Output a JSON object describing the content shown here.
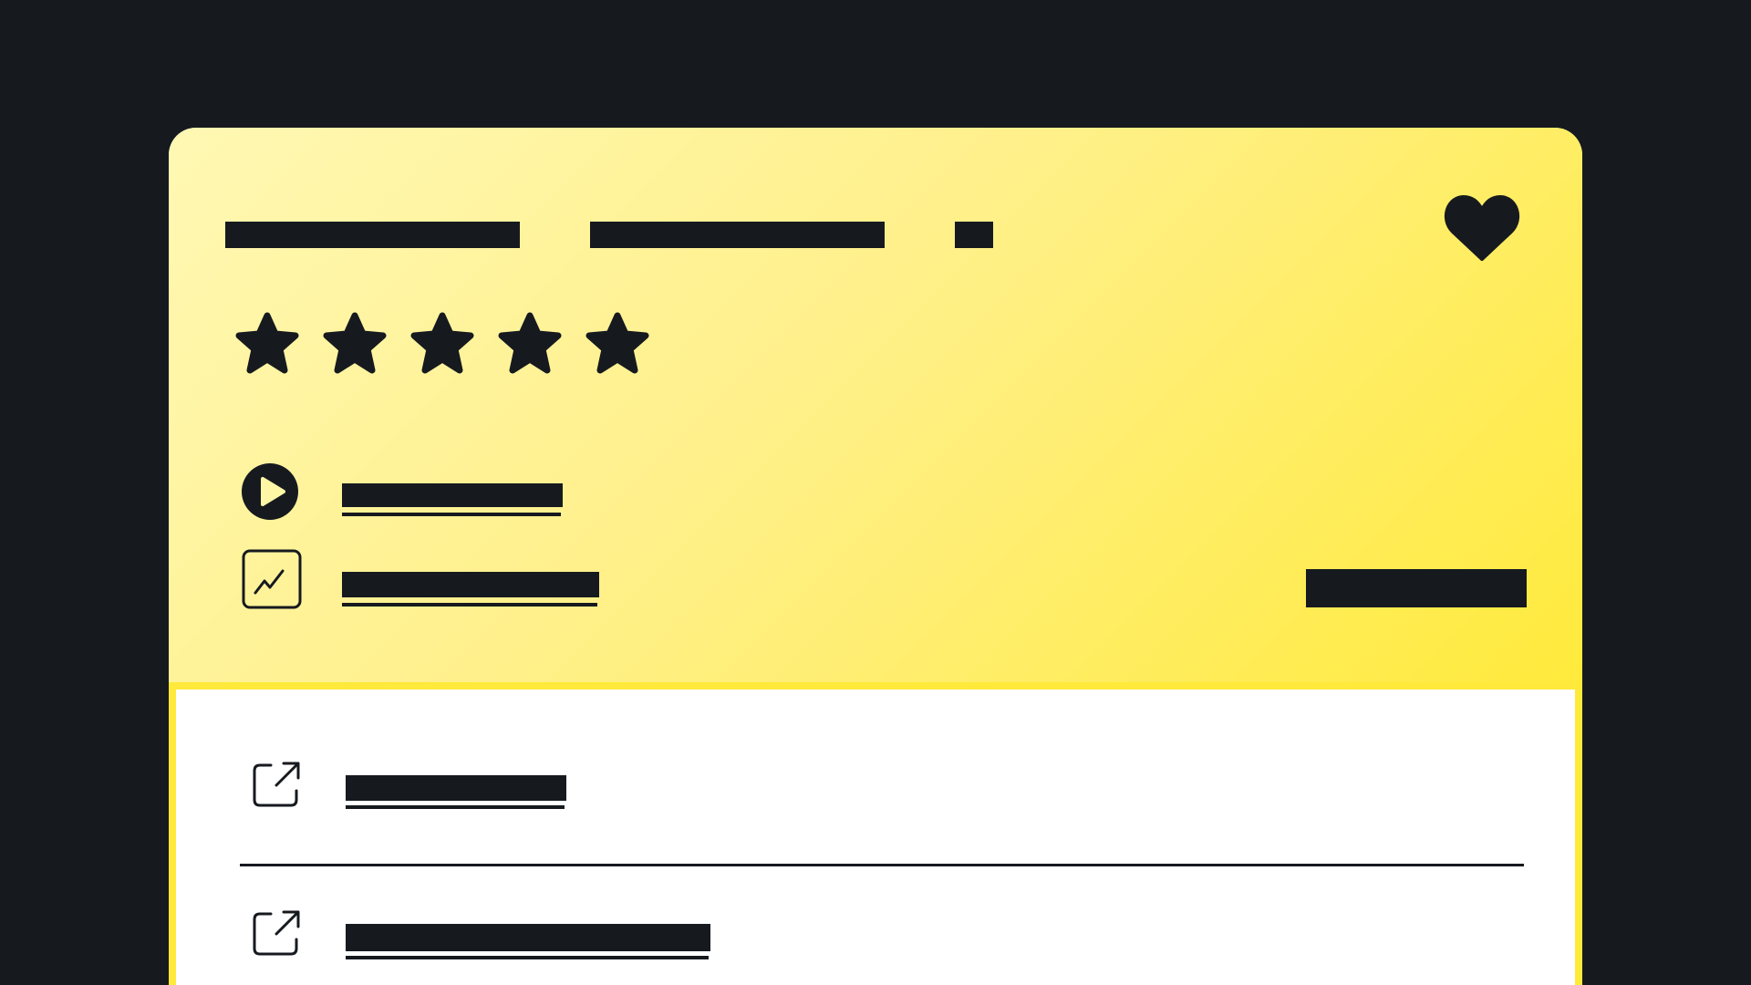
{
  "header": {
    "title_segments": [
      "",
      "",
      ""
    ]
  },
  "rating": {
    "value": 5,
    "max": 5
  },
  "actions": [
    {
      "icon": "play-circle-icon",
      "label": ""
    },
    {
      "icon": "chart-line-icon",
      "label": ""
    }
  ],
  "side_badge": "",
  "links": [
    {
      "icon": "external-link-icon",
      "label": ""
    },
    {
      "icon": "external-link-icon",
      "label": ""
    }
  ],
  "colors": {
    "background": "#161a1f",
    "card_gradient_start": "#fff8b4",
    "card_gradient_end": "#ffea3c",
    "ink": "#161a1f",
    "panel": "#ffffff"
  }
}
